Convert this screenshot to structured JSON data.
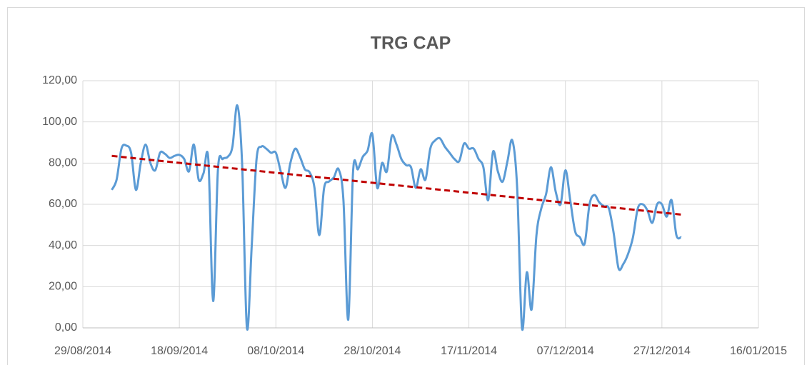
{
  "chart_data": {
    "type": "line",
    "title": "TRG CAP",
    "xlim": [
      "2014-08-29",
      "2015-01-16"
    ],
    "xticks": [
      {
        "value": "2014-08-29",
        "label": "29/08/2014"
      },
      {
        "value": "2014-09-18",
        "label": "18/09/2014"
      },
      {
        "value": "2014-10-08",
        "label": "08/10/2014"
      },
      {
        "value": "2014-10-28",
        "label": "28/10/2014"
      },
      {
        "value": "2014-11-17",
        "label": "17/11/2014"
      },
      {
        "value": "2014-12-07",
        "label": "07/12/2014"
      },
      {
        "value": "2014-12-27",
        "label": "27/12/2014"
      },
      {
        "value": "2015-01-16",
        "label": "16/01/2015"
      }
    ],
    "ylim": [
      0,
      120
    ],
    "yticks": [
      {
        "value": 0,
        "label": "0,00"
      },
      {
        "value": 20,
        "label": "20,00"
      },
      {
        "value": 40,
        "label": "40,00"
      },
      {
        "value": 60,
        "label": "60,00"
      },
      {
        "value": 80,
        "label": "80,00"
      },
      {
        "value": 100,
        "label": "100,00"
      },
      {
        "value": 120,
        "label": "120,00"
      }
    ],
    "grid": true,
    "series": [
      {
        "color": "#5b9bd5",
        "smooth": true,
        "dashed": false,
        "x": [
          "2014-09-04",
          "2014-09-05",
          "2014-09-06",
          "2014-09-07",
          "2014-09-08",
          "2014-09-09",
          "2014-09-10",
          "2014-09-11",
          "2014-09-12",
          "2014-09-13",
          "2014-09-14",
          "2014-09-15",
          "2014-09-16",
          "2014-09-17",
          "2014-09-18",
          "2014-09-19",
          "2014-09-20",
          "2014-09-21",
          "2014-09-22",
          "2014-09-23",
          "2014-09-24",
          "2014-09-25",
          "2014-09-26",
          "2014-09-27",
          "2014-09-28",
          "2014-09-29",
          "2014-09-30",
          "2014-10-01",
          "2014-10-02",
          "2014-10-03",
          "2014-10-04",
          "2014-10-05",
          "2014-10-06",
          "2014-10-07",
          "2014-10-08",
          "2014-10-09",
          "2014-10-10",
          "2014-10-11",
          "2014-10-12",
          "2014-10-13",
          "2014-10-14",
          "2014-10-15",
          "2014-10-16",
          "2014-10-17",
          "2014-10-18",
          "2014-10-19",
          "2014-10-20",
          "2014-10-21",
          "2014-10-22",
          "2014-10-23",
          "2014-10-24",
          "2014-10-25",
          "2014-10-26",
          "2014-10-27",
          "2014-10-28",
          "2014-10-29",
          "2014-10-30",
          "2014-10-31",
          "2014-11-01",
          "2014-11-02",
          "2014-11-03",
          "2014-11-04",
          "2014-11-05",
          "2014-11-06",
          "2014-11-07",
          "2014-11-08",
          "2014-11-09",
          "2014-11-10",
          "2014-11-11",
          "2014-11-12",
          "2014-11-13",
          "2014-11-14",
          "2014-11-15",
          "2014-11-16",
          "2014-11-17",
          "2014-11-18",
          "2014-11-19",
          "2014-11-20",
          "2014-11-21",
          "2014-11-22",
          "2014-11-23",
          "2014-11-24",
          "2014-11-25",
          "2014-11-26",
          "2014-11-27",
          "2014-11-28",
          "2014-11-29",
          "2014-11-30",
          "2014-12-01",
          "2014-12-02",
          "2014-12-03",
          "2014-12-04",
          "2014-12-05",
          "2014-12-06",
          "2014-12-07",
          "2014-12-08",
          "2014-12-09",
          "2014-12-10",
          "2014-12-11",
          "2014-12-12",
          "2014-12-13",
          "2014-12-14",
          "2014-12-15",
          "2014-12-16",
          "2014-12-17",
          "2014-12-18",
          "2014-12-19",
          "2014-12-20",
          "2014-12-21",
          "2014-12-22",
          "2014-12-23",
          "2014-12-24",
          "2014-12-25",
          "2014-12-26",
          "2014-12-27",
          "2014-12-28",
          "2014-12-29",
          "2014-12-30",
          "2014-12-31"
        ],
        "values": [
          67,
          72,
          87,
          88.5,
          85,
          67,
          80,
          89,
          80,
          76.5,
          85,
          84.5,
          82.5,
          83.5,
          84,
          82,
          76,
          89,
          72,
          75,
          82,
          13,
          77,
          82,
          83,
          88,
          108,
          80,
          0,
          40,
          82,
          88,
          87,
          85,
          85,
          76,
          68,
          80,
          87,
          83,
          77,
          75.5,
          68,
          45,
          68,
          71,
          73,
          77,
          62,
          4,
          76,
          77,
          83,
          86,
          94,
          68,
          80,
          76,
          93,
          89,
          82,
          79,
          78,
          68,
          77,
          72,
          87,
          91,
          92,
          88,
          85,
          82,
          81,
          89.5,
          87,
          87,
          82,
          78,
          62,
          85.5,
          76,
          71,
          81,
          91,
          68,
          0,
          27,
          9,
          45,
          58,
          65,
          78,
          66,
          60,
          76.5,
          62,
          47,
          44,
          41,
          60,
          64.5,
          61,
          59,
          58,
          46,
          29,
          31,
          36,
          44,
          58,
          60,
          57,
          51,
          60,
          60,
          54,
          62,
          45,
          44
        ]
      },
      {
        "color": "#c00000",
        "smooth": false,
        "dashed": true,
        "x": [
          "2014-09-04",
          "2014-12-31"
        ],
        "values": [
          83.5,
          55
        ]
      }
    ]
  }
}
